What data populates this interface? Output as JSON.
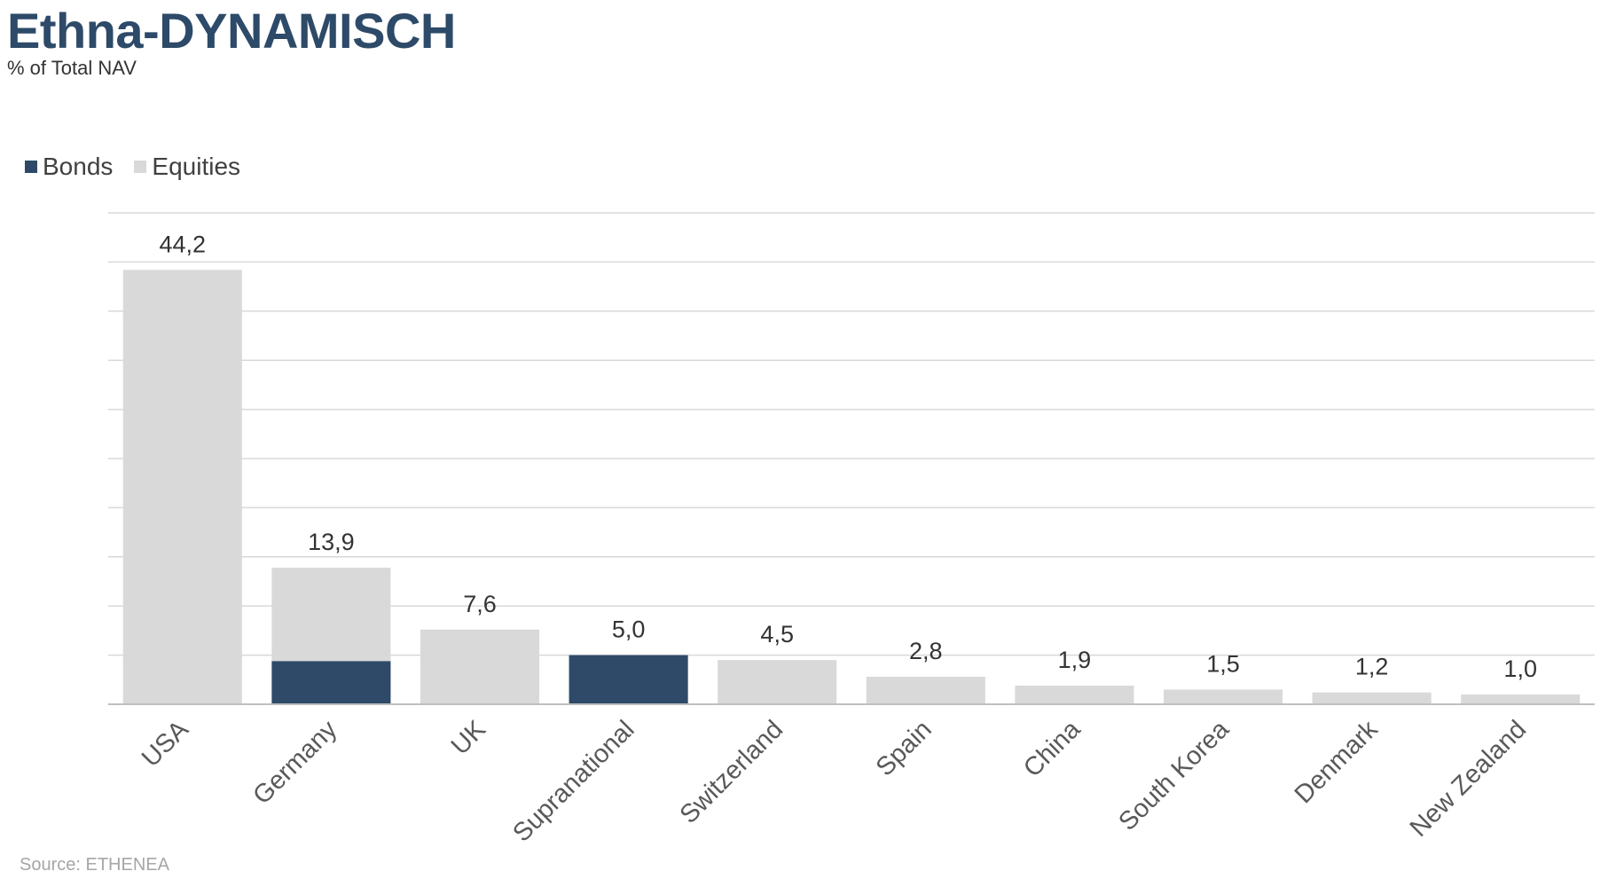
{
  "title": "Ethna-DYNAMISCH",
  "subtitle": "% of Total NAV",
  "source": "Source: ETHENEA",
  "legend": {
    "position": "top-left",
    "items": [
      {
        "label": "Bonds",
        "color": "#2e4a68"
      },
      {
        "label": "Equities",
        "color": "#d9d9d9"
      }
    ]
  },
  "chart_data": {
    "type": "bar",
    "stacked": true,
    "categories": [
      "USA",
      "Germany",
      "UK",
      "Supranational",
      "Switzerland",
      "Spain",
      "China",
      "South Korea",
      "Denmark",
      "New Zealand"
    ],
    "series": [
      {
        "name": "Bonds",
        "color": "#2e4a68",
        "values": [
          0,
          4.4,
          0,
          5.0,
          0,
          0,
          0,
          0,
          0,
          0
        ]
      },
      {
        "name": "Equities",
        "color": "#d9d9d9",
        "values": [
          44.2,
          9.5,
          7.6,
          0,
          4.5,
          2.8,
          1.9,
          1.5,
          1.2,
          1.0
        ]
      }
    ],
    "totals_labels": [
      "44,2",
      "13,9",
      "7,6",
      "5,0",
      "4,5",
      "2,8",
      "1,9",
      "1,5",
      "1,2",
      "1,0"
    ],
    "ylim": [
      0,
      50
    ],
    "grid_step": 5,
    "grid": true,
    "y_tick_labels_visible": false,
    "x_tick_rotation": -45
  }
}
